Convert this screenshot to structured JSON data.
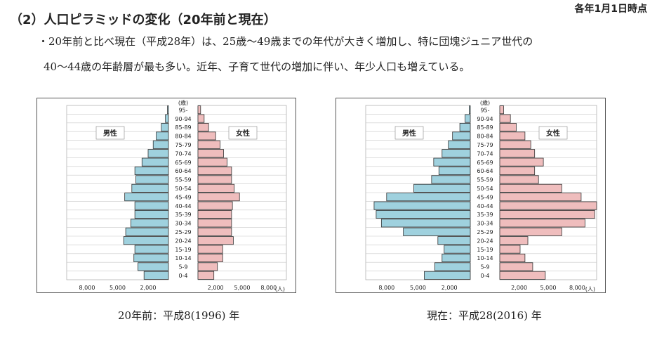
{
  "header": {
    "note": "各年1月1日時点",
    "title": "（2）人口ピラミッドの変化（20年前と現在）"
  },
  "summary": {
    "line1": "・20年前と比べ現在（平成28年）は、25歳〜49歳までの年代が大きく増加し、特に団塊ジュニア世代の",
    "line2": "40〜44歳の年齢層が最も多い。近年、子育て世代の増加に伴い、年少人口も増えている。"
  },
  "colors": {
    "male": "#9fd1de",
    "female": "#efbdbd",
    "edge": "#333333",
    "grid": "#c8c8c8"
  },
  "chart_data": [
    {
      "type": "bar",
      "orientation": "horizontal-pyramid",
      "caption": "20年前：平成8(1996) 年",
      "unit_label": "(歳)",
      "x_unit": "(人)",
      "male_label": "男性",
      "female_label": "女性",
      "xlim": [
        -10000,
        10000
      ],
      "x_tick_labels_left": [
        "8,000",
        "5,000",
        "2,000"
      ],
      "x_tick_labels_right": [
        "2,000",
        "5,000",
        "8,000"
      ],
      "categories": [
        "95-",
        "90-94",
        "85-89",
        "80-84",
        "75-79",
        "70-74",
        "65-69",
        "60-64",
        "55-59",
        "50-54",
        "45-49",
        "40-44",
        "35-39",
        "30-34",
        "25-29",
        "20-24",
        "15-19",
        "10-14",
        "5-9",
        "0-4"
      ],
      "series": [
        {
          "name": "男性",
          "values": [
            100,
            300,
            700,
            1200,
            1500,
            2000,
            2600,
            3300,
            3200,
            3600,
            4300,
            3300,
            3300,
            3700,
            4200,
            4400,
            3300,
            3400,
            3000,
            2400
          ]
        },
        {
          "name": "女性",
          "values": [
            300,
            700,
            1200,
            2000,
            2500,
            2900,
            3300,
            3800,
            3800,
            4100,
            4700,
            3900,
            3800,
            3800,
            3800,
            4000,
            2800,
            2800,
            2200,
            1800
          ]
        }
      ]
    },
    {
      "type": "bar",
      "orientation": "horizontal-pyramid",
      "caption": "現在：平成28(2016) 年",
      "unit_label": "(歳)",
      "x_unit": "(人)",
      "male_label": "男性",
      "female_label": "女性",
      "xlim": [
        -10000,
        10000
      ],
      "x_tick_labels_left": [
        "8,000",
        "5,000",
        "2,000"
      ],
      "x_tick_labels_right": [
        "2,000",
        "5,000",
        "8,000"
      ],
      "categories": [
        "95-",
        "90-94",
        "85-89",
        "80-84",
        "75-79",
        "70-74",
        "65-69",
        "60-64",
        "55-59",
        "50-54",
        "45-49",
        "40-44",
        "35-39",
        "30-34",
        "25-29",
        "20-24",
        "15-19",
        "10-14",
        "5-9",
        "0-4"
      ],
      "series": [
        {
          "name": "男性",
          "values": [
            100,
            500,
            1000,
            1700,
            2100,
            2700,
            3500,
            3000,
            3700,
            5400,
            8000,
            9200,
            9000,
            8500,
            6400,
            3100,
            2500,
            2700,
            3400,
            4400
          ]
        },
        {
          "name": "女性",
          "values": [
            400,
            1100,
            1700,
            2600,
            3200,
            3600,
            4500,
            3600,
            4000,
            6400,
            8400,
            10000,
            9800,
            8800,
            6400,
            2900,
            2100,
            2600,
            3400,
            4700
          ]
        }
      ]
    }
  ]
}
